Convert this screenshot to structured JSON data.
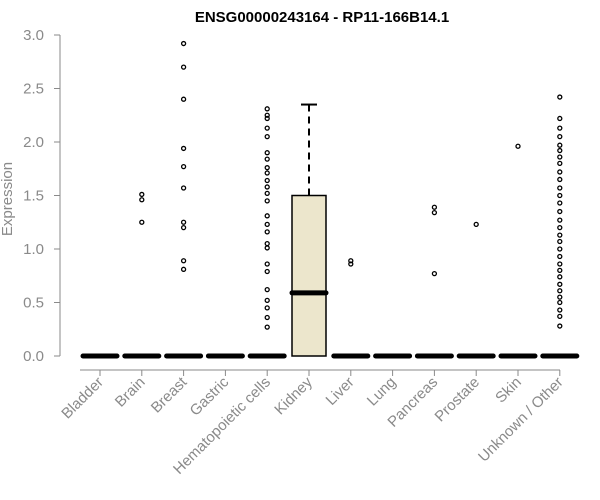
{
  "chart_data": {
    "type": "boxplot",
    "title": "ENSG00000243164 - RP11-166B14.1",
    "xlabel": "",
    "ylabel": "Expression",
    "ylim": [
      0,
      3.0
    ],
    "yticks": [
      "0.0",
      "0.5",
      "1.0",
      "1.5",
      "2.0",
      "2.5",
      "3.0"
    ],
    "box_color": "#ece6cc",
    "categories": [
      "Bladder",
      "Brain",
      "Breast",
      "Gastric",
      "Hematopoietic cells",
      "Kidney",
      "Liver",
      "Lung",
      "Pancreas",
      "Prostate",
      "Skin",
      "Unknown / Other"
    ],
    "boxes": [
      {
        "category": "Bladder",
        "q1": 0,
        "median": 0,
        "q3": 0,
        "whisker_low": 0,
        "whisker_high": 0,
        "outliers": []
      },
      {
        "category": "Brain",
        "q1": 0,
        "median": 0,
        "q3": 0,
        "whisker_low": 0,
        "whisker_high": 0,
        "outliers": [
          1.25,
          1.46,
          1.51
        ]
      },
      {
        "category": "Breast",
        "q1": 0,
        "median": 0,
        "q3": 0,
        "whisker_low": 0,
        "whisker_high": 0,
        "outliers": [
          0.81,
          0.89,
          1.2,
          1.25,
          1.57,
          1.77,
          1.94,
          2.4,
          2.7,
          2.92
        ]
      },
      {
        "category": "Gastric",
        "q1": 0,
        "median": 0,
        "q3": 0,
        "whisker_low": 0,
        "whisker_high": 0,
        "outliers": []
      },
      {
        "category": "Hematopoietic cells",
        "q1": 0,
        "median": 0,
        "q3": 0,
        "whisker_low": 0,
        "whisker_high": 0,
        "outliers": [
          0.27,
          0.36,
          0.45,
          0.52,
          0.62,
          0.79,
          0.86,
          1.01,
          1.05,
          1.16,
          1.23,
          1.31,
          1.45,
          1.52,
          1.58,
          1.64,
          1.71,
          1.76,
          1.84,
          1.9,
          2.05,
          2.13,
          2.22,
          2.25,
          2.31
        ]
      },
      {
        "category": "Kidney",
        "q1": 0,
        "median": 0.59,
        "q3": 1.5,
        "whisker_low": 0,
        "whisker_high": 2.35,
        "outliers": []
      },
      {
        "category": "Liver",
        "q1": 0,
        "median": 0,
        "q3": 0,
        "whisker_low": 0,
        "whisker_high": 0,
        "outliers": [
          0.86,
          0.89
        ]
      },
      {
        "category": "Lung",
        "q1": 0,
        "median": 0,
        "q3": 0,
        "whisker_low": 0,
        "whisker_high": 0,
        "outliers": []
      },
      {
        "category": "Pancreas",
        "q1": 0,
        "median": 0,
        "q3": 0,
        "whisker_low": 0,
        "whisker_high": 0,
        "outliers": [
          0.77,
          1.34,
          1.39
        ]
      },
      {
        "category": "Prostate",
        "q1": 0,
        "median": 0,
        "q3": 0,
        "whisker_low": 0,
        "whisker_high": 0,
        "outliers": [
          1.23
        ]
      },
      {
        "category": "Skin",
        "q1": 0,
        "median": 0,
        "q3": 0,
        "whisker_low": 0,
        "whisker_high": 0,
        "outliers": [
          1.96
        ]
      },
      {
        "category": "Unknown / Other",
        "q1": 0,
        "median": 0,
        "q3": 0,
        "whisker_low": 0,
        "whisker_high": 0,
        "outliers": [
          0.28,
          0.37,
          0.43,
          0.5,
          0.55,
          0.61,
          0.67,
          0.74,
          0.8,
          0.86,
          0.93,
          1.0,
          1.07,
          1.13,
          1.2,
          1.27,
          1.35,
          1.43,
          1.5,
          1.57,
          1.65,
          1.72,
          1.8,
          1.86,
          1.92,
          1.97,
          2.05,
          2.13,
          2.22,
          2.42
        ]
      }
    ]
  }
}
